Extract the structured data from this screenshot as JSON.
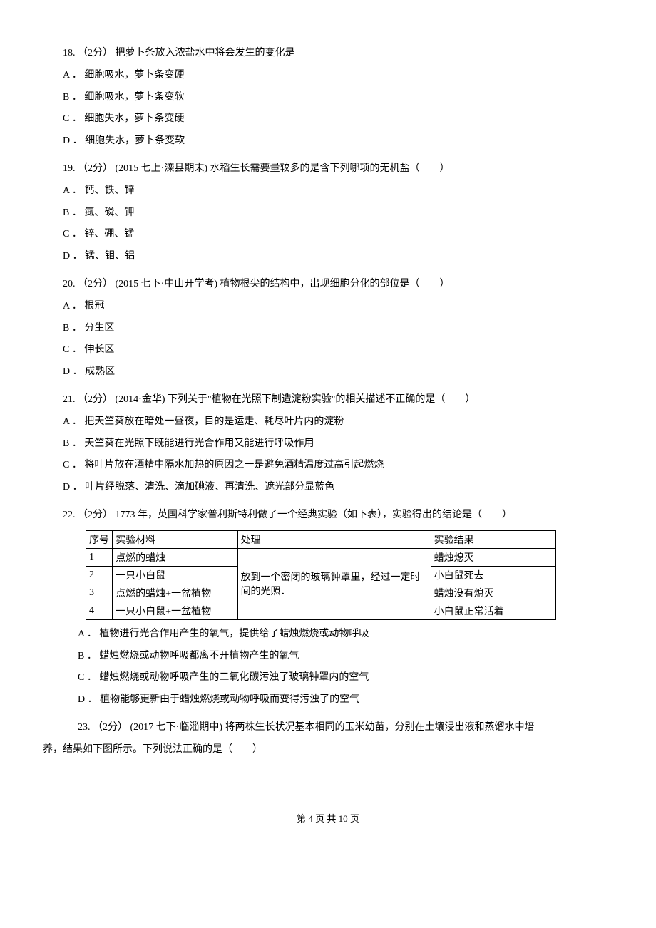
{
  "page": {
    "footer": "第 4 页 共 10 页"
  },
  "questions": {
    "q18": {
      "text": "18. （2分） 把萝卜条放入浓盐水中将会发生的变化是",
      "options": {
        "a": "A ． 细胞吸水，萝卜条变硬",
        "b": "B ． 细胞吸水，萝卜条变软",
        "c": "C ． 细胞失水，萝卜条变硬",
        "d": "D ． 细胞失水，萝卜条变软"
      }
    },
    "q19": {
      "text": "19. （2分） (2015 七上·滦县期末) 水稻生长需要量较多的是含下列哪项的无机盐（　　）",
      "options": {
        "a": "A ． 钙、铁、锌",
        "b": "B ． 氮、磷、钾",
        "c": "C ． 锌、硼、锰",
        "d": "D ． 锰、钼、铝"
      }
    },
    "q20": {
      "text": "20. （2分） (2015 七下·中山开学考) 植物根尖的结构中，出现细胞分化的部位是（　　）",
      "options": {
        "a": "A ． 根冠",
        "b": "B ． 分生区",
        "c": "C ． 伸长区",
        "d": "D ． 成熟区"
      }
    },
    "q21": {
      "text": "21. （2分） (2014·金华) 下列关于\"植物在光照下制造淀粉实验\"的相关描述不正确的是（　　）",
      "options": {
        "a": "A ． 把天竺葵放在暗处一昼夜，目的是运走、耗尽叶片内的淀粉",
        "b": "B ． 天竺葵在光照下既能进行光合作用又能进行呼吸作用",
        "c": "C ． 将叶片放在酒精中隔水加热的原因之一是避免酒精温度过高引起燃烧",
        "d": "D ． 叶片经脱落、清洗、滴加碘液、再清洗、遮光部分显蓝色"
      }
    },
    "q22": {
      "text": "22. （2分） 1773 年，英国科学家普利斯特利做了一个经典实验（如下表），实验得出的结论是（　　）",
      "table": {
        "headers": {
          "seq": "序号",
          "material": "实验材料",
          "process": "处理",
          "result": "实验结果"
        },
        "rows": {
          "r1": {
            "seq": "1",
            "material": "点燃的蜡烛",
            "result": "蜡烛熄灭"
          },
          "r2": {
            "seq": "2",
            "material": "一只小白鼠",
            "result": "小白鼠死去"
          },
          "r3": {
            "seq": "3",
            "material": "点燃的蜡烛+一盆植物",
            "result": "蜡烛没有熄灭"
          },
          "r4": {
            "seq": "4",
            "material": "一只小白鼠+一盆植物",
            "result": "小白鼠正常活着"
          },
          "process_merged": "放到一个密闭的玻璃钟罩里，经过一定时间的光照．"
        }
      },
      "options": {
        "a": "A ． 植物进行光合作用产生的氧气，提供给了蜡烛燃烧或动物呼吸",
        "b": "B ． 蜡烛燃烧或动物呼吸都离不开植物产生的氧气",
        "c": "C ． 蜡烛燃烧或动物呼吸产生的二氧化碳污浊了玻璃钟罩内的空气",
        "d": "D ． 植物能够更新由于蜡烛燃烧或动物呼吸而变得污浊了的空气"
      }
    },
    "q23": {
      "text": "23. （2分） (2017 七下·临淄期中) 将两株生长状况基本相同的玉米幼苗，分别在土壤浸出液和蒸馏水中培",
      "text2": "养，结果如下图所示。下列说法正确的是（　　）"
    }
  }
}
